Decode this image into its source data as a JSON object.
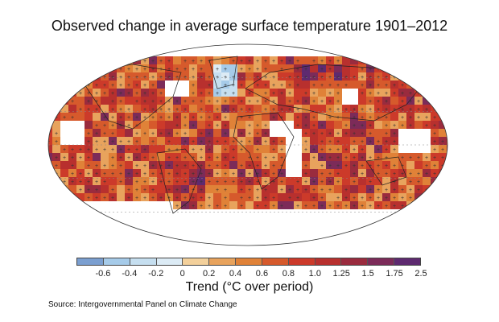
{
  "title": "Observed change in average surface temperature 1901–2012",
  "colorbar": {
    "colors": [
      "#7b9fd0",
      "#a6cbe9",
      "#c6dff0",
      "#dcebf5",
      "#f3d09b",
      "#e8a35d",
      "#e08238",
      "#d65a2c",
      "#cc3a2a",
      "#b8302e",
      "#9a2b3e",
      "#7c2b59",
      "#5e2a70"
    ],
    "ticks": [
      "-0.6",
      "-0.4",
      "-0.2",
      "0",
      "0.2",
      "0.4",
      "0.6",
      "0.8",
      "1.0",
      "1.25",
      "1.5",
      "1.75",
      "2.5"
    ],
    "label": "Trend (°C over period)"
  },
  "map": {
    "projection": "robinson",
    "missing_color": "#ffffff",
    "significance_marker": "plus"
  },
  "source": "Source: Intergovernmental Panel on Climate Change"
}
